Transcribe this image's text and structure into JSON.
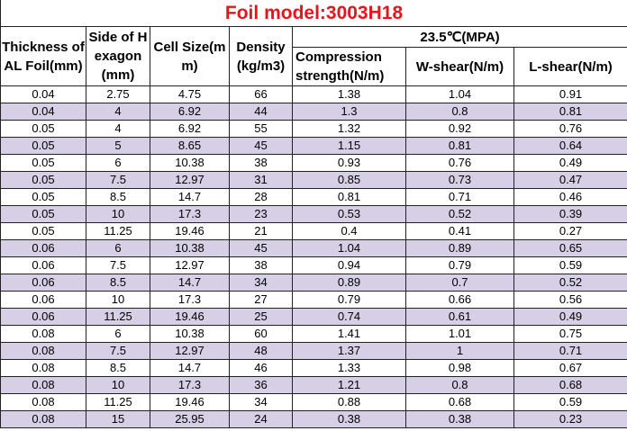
{
  "title": "Foil model:3003H18",
  "table": {
    "headers": [
      "Thickness of AL Foil(mm)",
      "Side of Hexagon(mm)",
      "Cell Size(mm)",
      "Density (kg/m3)"
    ],
    "group_header": "23.5℃(MPA)",
    "sub_headers": [
      "Compression strength(N/m)",
      "W-shear(N/m)",
      "L-shear(N/m)"
    ],
    "rows": [
      [
        "0.04",
        "2.75",
        "4.75",
        "66",
        "1.38",
        "1.04",
        "0.91"
      ],
      [
        "0.04",
        "4",
        "6.92",
        "44",
        "1.3",
        "0.8",
        "0.81"
      ],
      [
        "0.05",
        "4",
        "6.92",
        "55",
        "1.32",
        "0.92",
        "0.76"
      ],
      [
        "0.05",
        "5",
        "8.65",
        "45",
        "1.15",
        "0.81",
        "0.64"
      ],
      [
        "0.05",
        "6",
        "10.38",
        "38",
        "0.93",
        "0.76",
        "0.49"
      ],
      [
        "0.05",
        "7.5",
        "12.97",
        "31",
        "0.85",
        "0.73",
        "0.47"
      ],
      [
        "0.05",
        "8.5",
        "14.7",
        "28",
        "0.81",
        "0.71",
        "0.46"
      ],
      [
        "0.05",
        "10",
        "17.3",
        "23",
        "0.53",
        "0.52",
        "0.39"
      ],
      [
        "0.05",
        "11.25",
        "19.46",
        "21",
        "0.4",
        "0.41",
        "0.27"
      ],
      [
        "0.06",
        "6",
        "10.38",
        "45",
        "1.04",
        "0.89",
        "0.65"
      ],
      [
        "0.06",
        "7.5",
        "12.97",
        "38",
        "0.94",
        "0.79",
        "0.59"
      ],
      [
        "0.06",
        "8.5",
        "14.7",
        "34",
        "0.89",
        "0.7",
        "0.52"
      ],
      [
        "0.06",
        "10",
        "17.3",
        "27",
        "0.79",
        "0.66",
        "0.56"
      ],
      [
        "0.06",
        "11.25",
        "19.46",
        "25",
        "0.74",
        "0.61",
        "0.49"
      ],
      [
        "0.08",
        "6",
        "10.38",
        "60",
        "1.41",
        "1.01",
        "0.75"
      ],
      [
        "0.08",
        "7.5",
        "12.97",
        "48",
        "1.37",
        "1",
        "0.71"
      ],
      [
        "0.08",
        "8.5",
        "14.7",
        "46",
        "1.33",
        "0.98",
        "0.67"
      ],
      [
        "0.08",
        "10",
        "17.3",
        "36",
        "1.21",
        "0.8",
        "0.68"
      ],
      [
        "0.08",
        "11.25",
        "19.46",
        "34",
        "0.88",
        "0.68",
        "0.59"
      ],
      [
        "0.08",
        "15",
        "25.95",
        "24",
        "0.38",
        "0.38",
        "0.23"
      ]
    ]
  }
}
